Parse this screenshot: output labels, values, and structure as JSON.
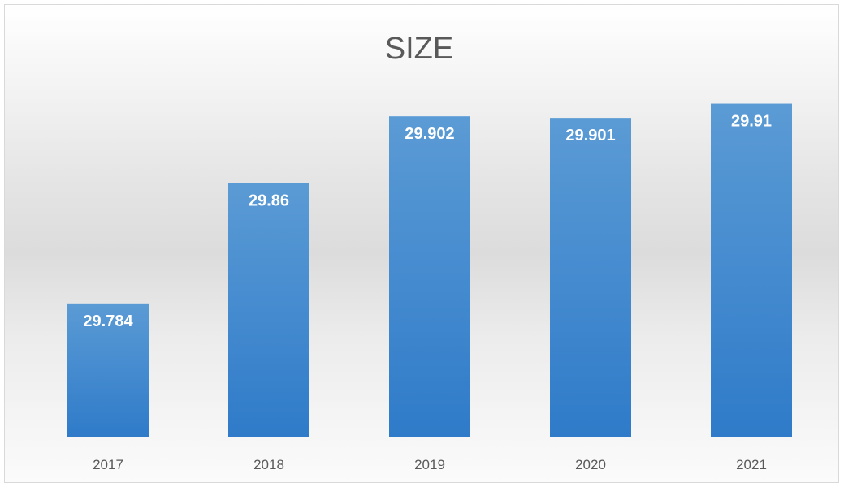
{
  "chart_data": {
    "type": "bar",
    "title": "SIZE",
    "xlabel": "",
    "ylabel": "",
    "categories": [
      "2017",
      "2018",
      "2019",
      "2020",
      "2021"
    ],
    "values": [
      29.784,
      29.86,
      29.902,
      29.901,
      29.91
    ],
    "data_labels": [
      "29.784",
      "29.86",
      "29.902",
      "29.901",
      "29.91"
    ],
    "ylim": [
      29.7,
      29.92
    ],
    "grid": false,
    "legend": "none",
    "colors": {
      "bar_top": "#5b9bd5",
      "bar_bottom": "#2f7bc9",
      "text": "#595959"
    }
  }
}
